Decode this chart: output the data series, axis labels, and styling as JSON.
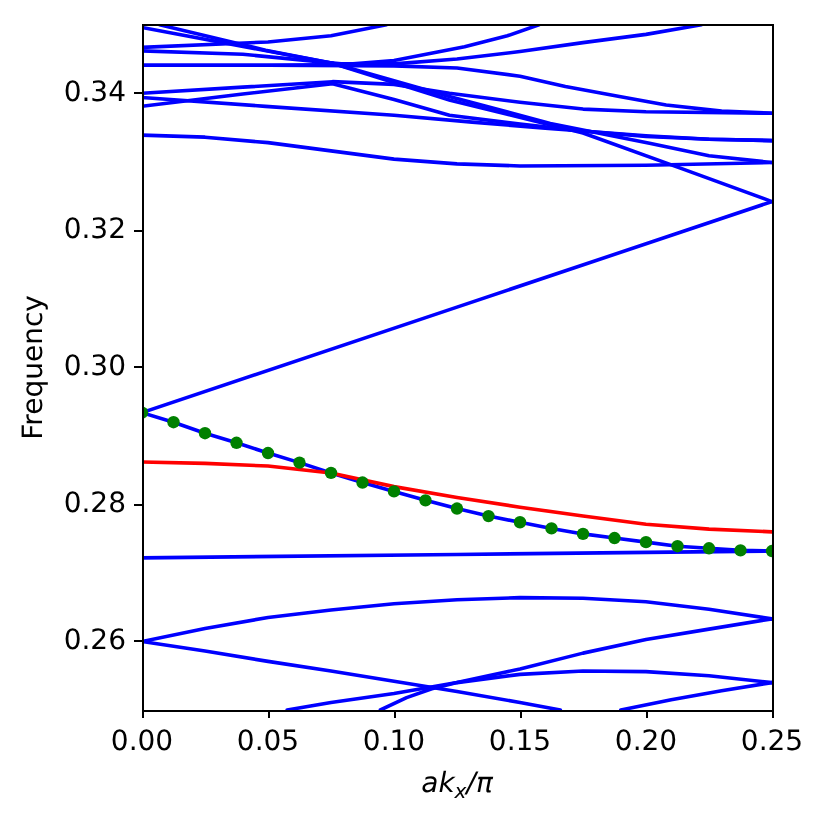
{
  "chart_data": {
    "type": "line",
    "xlabel": "ak$_{x}$/π",
    "ylabel": "Frequency",
    "xlim": [
      0,
      0.25
    ],
    "ylim": [
      0.25,
      0.35
    ],
    "xticks": [
      {
        "value": 0,
        "label": "0.00"
      },
      {
        "value": 0.05,
        "label": "0.05"
      },
      {
        "value": 0.1,
        "label": "0.10"
      },
      {
        "value": 0.15,
        "label": "0.15"
      },
      {
        "value": 0.2,
        "label": "0.20"
      },
      {
        "value": 0.25,
        "label": "0.25"
      }
    ],
    "yticks": [
      0.26,
      0.28,
      {
        "value": 0.3,
        "label": "0.30"
      },
      0.32,
      0.34
    ],
    "grid": false,
    "legend": false,
    "x": [
      0,
      0.0125,
      0.025,
      0.0375,
      0.05,
      0.0625,
      0.075,
      0.0875,
      0.1,
      0.1125,
      0.125,
      0.1375,
      0.15,
      0.1625,
      0.175,
      0.1875,
      0.2,
      0.2125,
      0.225,
      0.2375,
      0.25
    ],
    "series": [
      {
        "color": "#0000ff",
        "x": [
          0,
          0.025,
          0.05,
          0.075,
          0.1,
          0.125,
          0.15,
          0.166
        ],
        "values": [
          0.26,
          0.2586,
          0.2571,
          0.2557,
          0.2542,
          0.2527,
          0.2511,
          0.25
        ]
      },
      {
        "color": "#0000ff",
        "x": [
          0,
          0.025,
          0.05,
          0.075,
          0.1,
          0.125,
          0.15,
          0.175,
          0.2,
          0.225,
          0.25
        ],
        "values": [
          0.26,
          0.2619,
          0.2635,
          0.2646,
          0.2655,
          0.2661,
          0.2664,
          0.2663,
          0.2658,
          0.2647,
          0.2633
        ]
      },
      {
        "color": "#0000ff",
        "x": [
          0.0576,
          0.075,
          0.1,
          0.125,
          0.15,
          0.175,
          0.2,
          0.225,
          0.25
        ],
        "values": [
          0.25,
          0.2511,
          0.2524,
          0.254,
          0.256,
          0.2583,
          0.2603,
          0.2618,
          0.2633
        ]
      },
      {
        "color": "#0000ff",
        "x": [
          0.0946,
          0.105,
          0.115,
          0.125,
          0.15,
          0.175,
          0.2,
          0.225,
          0.25
        ],
        "values": [
          0.25,
          0.2518,
          0.2531,
          0.254,
          0.2552,
          0.2557,
          0.2556,
          0.255,
          0.254
        ]
      },
      {
        "color": "#0000ff",
        "x": [
          0.19,
          0.21,
          0.23,
          0.25
        ],
        "values": [
          0.25,
          0.2515,
          0.2528,
          0.254
        ]
      },
      {
        "color": "#0000ff",
        "x": [
          0,
          0.125,
          0.25
        ],
        "values": [
          0.2722,
          0.2727,
          0.2732
        ]
      },
      {
        "color": "#0000ff",
        "values": [
          0.2934,
          0.292,
          0.2904,
          0.289,
          0.2875,
          0.2861,
          0.2846,
          0.2832,
          0.2819,
          0.2806,
          0.2794,
          0.2783,
          0.2774,
          0.2765,
          0.2757,
          0.2751,
          0.2745,
          0.2739,
          0.2736,
          0.2733,
          0.2732
        ]
      },
      {
        "color": "#0000ff",
        "x": [
          0,
          0.125,
          0.25
        ],
        "values": [
          0.2934,
          0.3088,
          0.3242
        ]
      },
      {
        "color": "#0000ff",
        "x": [
          0,
          0.025,
          0.05,
          0.075,
          0.1,
          0.125,
          0.15,
          0.2,
          0.25
        ],
        "values": [
          0.3339,
          0.3336,
          0.3328,
          0.3316,
          0.3304,
          0.3297,
          0.3294,
          0.3295,
          0.3299
        ]
      },
      {
        "color": "#0000ff",
        "x": [
          0,
          0.05,
          0.075,
          0.097
        ],
        "values": [
          0.3467,
          0.3475,
          0.3484,
          0.35
        ]
      },
      {
        "color": "#0000ff",
        "x": [
          0,
          0.05,
          0.08,
          0.1,
          0.128,
          0.145,
          0.1575
        ],
        "values": [
          0.3441,
          0.3441,
          0.3442,
          0.3448,
          0.3468,
          0.3484,
          0.35
        ]
      },
      {
        "color": "#0000ff",
        "x": [
          0,
          0.04,
          0.079,
          0.1,
          0.125,
          0.15,
          0.175,
          0.2,
          0.222
        ],
        "values": [
          0.3462,
          0.3457,
          0.3443,
          0.3443,
          0.345,
          0.3461,
          0.3474,
          0.3486,
          0.35
        ]
      },
      {
        "color": "#0000ff",
        "x": [
          0,
          0.0756,
          0.1223,
          0.162,
          0.2014,
          0.225,
          0.25
        ],
        "values": [
          0.3496,
          0.3444,
          0.3395,
          0.3356,
          0.3327,
          0.3309,
          0.3299
        ]
      },
      {
        "color": "#0000ff",
        "x": [
          0.007,
          0.049,
          0.0756,
          0.1223,
          0.175,
          0.215,
          0.25
        ],
        "values": [
          0.35,
          0.3463,
          0.3444,
          0.339,
          0.3342,
          0.3289,
          0.3242
        ]
      },
      {
        "color": "#0000ff",
        "x": [
          0,
          0.05,
          0.1,
          0.125,
          0.15,
          0.168,
          0.19,
          0.208,
          0.23,
          0.25
        ],
        "values": [
          0.3441,
          0.3441,
          0.344,
          0.3437,
          0.3425,
          0.341,
          0.3395,
          0.3383,
          0.3374,
          0.3371
        ]
      },
      {
        "color": "#0000ff",
        "x": [
          0,
          0.04,
          0.0756,
          0.1,
          0.122,
          0.15,
          0.175,
          0.2,
          0.25
        ],
        "values": [
          0.34,
          0.3409,
          0.3417,
          0.3413,
          0.34,
          0.3387,
          0.3377,
          0.3373,
          0.3371
        ]
      },
      {
        "color": "#0000ff",
        "x": [
          0,
          0.049,
          0.1,
          0.131,
          0.16,
          0.2,
          0.225,
          0.25
        ],
        "values": [
          0.3394,
          0.3381,
          0.3368,
          0.3358,
          0.3349,
          0.3338,
          0.3333,
          0.3331
        ]
      },
      {
        "color": "#0000ff",
        "x": [
          0,
          0.04,
          0.0756,
          0.1,
          0.122,
          0.15,
          0.175,
          0.2,
          0.225,
          0.25
        ],
        "values": [
          0.3381,
          0.3399,
          0.3414,
          0.3391,
          0.3368,
          0.3355,
          0.3345,
          0.3337,
          0.3333,
          0.3331
        ]
      },
      {
        "color": "#ff0000",
        "x": [
          0,
          0.025,
          0.05,
          0.075,
          0.1,
          0.125,
          0.15,
          0.175,
          0.2,
          0.225,
          0.25
        ],
        "values": [
          0.2862,
          0.286,
          0.2856,
          0.2846,
          0.2826,
          0.281,
          0.2796,
          0.2783,
          0.2771,
          0.2764,
          0.276
        ]
      },
      {
        "type": "scatter",
        "color": "#008000",
        "marker": "circle",
        "values": [
          0.2934,
          0.292,
          0.2904,
          0.289,
          0.2875,
          0.2861,
          0.2846,
          0.2832,
          0.2819,
          0.2806,
          0.2794,
          0.2783,
          0.2774,
          0.2765,
          0.2757,
          0.2751,
          0.2745,
          0.2739,
          0.2736,
          0.2733,
          0.2732
        ]
      }
    ]
  }
}
